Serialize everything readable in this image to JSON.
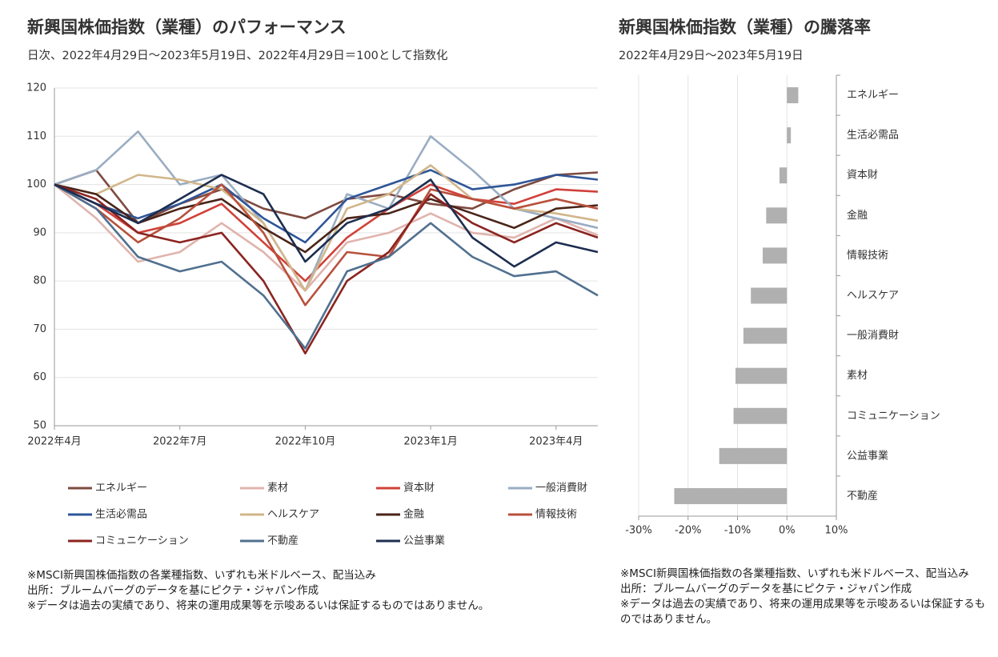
{
  "chart_data": [
    {
      "type": "line",
      "title": "新興国株価指数（業種）のパフォーマンス",
      "subtitle": "日次、2022年4月29日～2023年5月19日、2022年4月29日＝100として指数化",
      "categories": [
        "2022年4月",
        null,
        null,
        "2022年7月",
        null,
        null,
        "2022年10月",
        null,
        null,
        "2023年1月",
        null,
        null,
        "2023年4月",
        null
      ],
      "ylim": [
        50,
        120
      ],
      "yticks": [
        50,
        60,
        70,
        80,
        90,
        100,
        110,
        120
      ],
      "grid": true,
      "series": [
        {
          "name": "エネルギー",
          "color": "#7f4a3f",
          "values": [
            100,
            103,
            92,
            96,
            99,
            95,
            93,
            97,
            98,
            96,
            95,
            99,
            102,
            102.5
          ]
        },
        {
          "name": "素材",
          "color": "#e0b4ae",
          "values": [
            100,
            93,
            84,
            86,
            92,
            86,
            78,
            88,
            90,
            94,
            90,
            89,
            93,
            89.5
          ]
        },
        {
          "name": "資本財",
          "color": "#d0413a",
          "values": [
            100,
            96,
            90,
            92,
            96,
            88,
            80,
            89,
            95,
            100,
            97,
            96,
            99,
            98.5
          ]
        },
        {
          "name": "一般消費財",
          "color": "#9aadc2",
          "values": [
            100,
            103,
            111,
            100,
            102,
            92,
            78,
            98,
            95,
            110,
            103,
            95,
            93,
            91
          ]
        },
        {
          "name": "生活必需品",
          "color": "#2e5597",
          "values": [
            100,
            96,
            93,
            96,
            100,
            93,
            88,
            97,
            100,
            103,
            99,
            100,
            102,
            101
          ]
        },
        {
          "name": "ヘルスケア",
          "color": "#d1b68a",
          "values": [
            100,
            98,
            102,
            101,
            99,
            92,
            78,
            95,
            98,
            104,
            97,
            95,
            94,
            92.5
          ]
        },
        {
          "name": "金融",
          "color": "#4a2418",
          "values": [
            100,
            98,
            92,
            95,
            97,
            91,
            86,
            93,
            94,
            97,
            94,
            91,
            95,
            95.7
          ]
        },
        {
          "name": "情報技術",
          "color": "#b8503b",
          "values": [
            100,
            95,
            88,
            93,
            100,
            90,
            75,
            86,
            85,
            99,
            97,
            95,
            97,
            95
          ]
        },
        {
          "name": "コミュニケーション",
          "color": "#8b2420",
          "values": [
            100,
            97,
            90,
            88,
            90,
            80,
            65,
            80,
            86,
            98,
            92,
            88,
            92,
            89
          ]
        },
        {
          "name": "不動産",
          "color": "#50708f",
          "values": [
            100,
            95,
            85,
            82,
            84,
            77,
            66,
            82,
            85,
            92,
            85,
            81,
            82,
            77
          ]
        },
        {
          "name": "公益事業",
          "color": "#1c2d4f",
          "values": [
            100,
            96,
            92,
            97,
            102,
            98,
            84,
            92,
            95,
            101,
            89,
            83,
            88,
            86
          ]
        }
      ],
      "notes": [
        "※MSCI新興国株価指数の各業種指数、いずれも米ドルベース、配当込み",
        "出所：ブルームバーグのデータを基にピクテ・ジャパン作成",
        "※データは過去の実績であり、将来の運用成果等を示唆あるいは保証するものではありません。"
      ]
    },
    {
      "type": "barh",
      "title": "新興国株価指数（業種）の騰落率",
      "subtitle": "2022年4月29日～2023年5月19日",
      "categories": [
        "エネルギー",
        "生活必需品",
        "資本財",
        "金融",
        "情報技術",
        "ヘルスケア",
        "一般消費財",
        "素材",
        "コミュニケーション",
        "公益事業",
        "不動産"
      ],
      "values": [
        2.3,
        0.8,
        -1.5,
        -4.2,
        -4.9,
        -7.3,
        -8.8,
        -10.4,
        -10.8,
        -13.7,
        -22.8
      ],
      "color": "#b0b0b0",
      "xlim": [
        -30,
        10
      ],
      "xticks": [
        {
          "value": -30,
          "label": "-30%"
        },
        {
          "value": -20,
          "label": "-20%"
        },
        {
          "value": -10,
          "label": "-10%"
        },
        {
          "value": 0,
          "label": "0%"
        },
        {
          "value": 10,
          "label": "10%"
        }
      ],
      "grid": true,
      "notes": [
        "※MSCI新興国株価指数の各業種指数、いずれも米ドルベース、配当込み",
        "出所：ブルームバーグのデータを基にピクテ・ジャパン作成",
        "※データは過去の実績であり、将来の運用成果等を示唆あるいは保証するものではありません。"
      ]
    }
  ]
}
